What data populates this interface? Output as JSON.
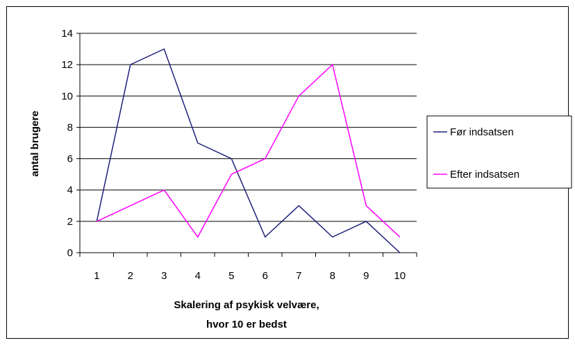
{
  "chart_data": {
    "type": "line",
    "title": "",
    "xlabel_lines": [
      "Skalering af psykisk velvære,",
      "hvor 10 er bedst"
    ],
    "ylabel": "antal brugere",
    "categories": [
      "1",
      "2",
      "3",
      "4",
      "5",
      "6",
      "7",
      "8",
      "9",
      "10"
    ],
    "ylim": [
      0,
      14
    ],
    "yticks": [
      0,
      2,
      4,
      6,
      8,
      10,
      12,
      14
    ],
    "grid": true,
    "legend_position": "right",
    "series": [
      {
        "name": "Før indsatsen",
        "color": "#1f1f7a",
        "values": [
          2,
          12,
          13,
          7,
          6,
          1,
          3,
          1,
          2,
          0
        ]
      },
      {
        "name": "Efter indsatsen",
        "color": "#ff00ff",
        "values": [
          2,
          3,
          4,
          1,
          5,
          6,
          10,
          12,
          3,
          1
        ]
      }
    ]
  }
}
